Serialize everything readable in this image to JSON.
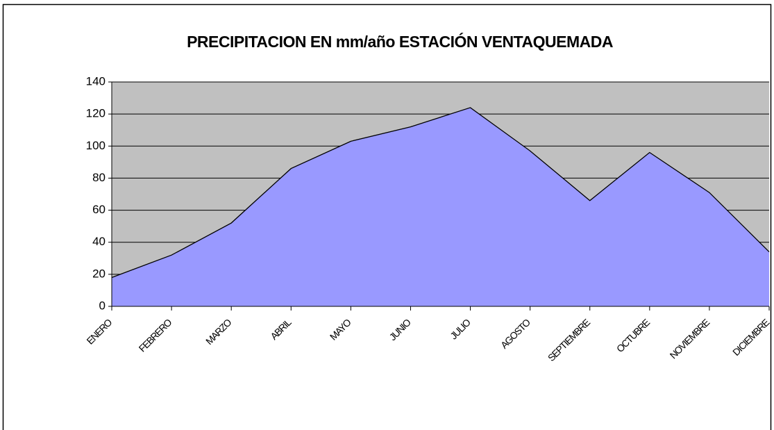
{
  "chart_data": {
    "type": "area",
    "title": "PRECIPITACION EN mm/año ESTACIÓN VENTAQUEMADA",
    "categories": [
      "ENERO",
      "FEBRERO",
      "MARZO",
      "ABRIL",
      "MAYO",
      "JUNIO",
      "JULIO",
      "AGOSTO",
      "SEPTIEMBRE",
      "OCTUBRE",
      "NOVIEMBRE",
      "DICIEMBRE"
    ],
    "values": [
      18,
      32,
      52,
      86,
      103,
      112,
      124,
      97,
      66,
      96,
      71,
      34
    ],
    "color": "#9999ff",
    "plot_background": "#c0c0c0",
    "ylim": [
      0,
      140
    ],
    "yticks": [
      0,
      20,
      40,
      60,
      80,
      100,
      120,
      140
    ],
    "grid": true
  }
}
